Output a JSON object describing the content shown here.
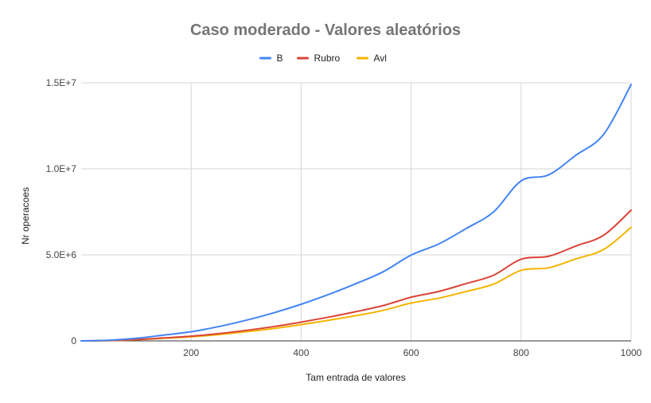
{
  "chart_data": {
    "type": "line",
    "title": "Caso moderado - Valores aleatórios",
    "xlabel": "Tam entrada de valores",
    "ylabel": "Nr operacoes",
    "xlim": [
      0,
      1000
    ],
    "ylim": [
      0,
      15000000
    ],
    "x_ticks": [
      200,
      400,
      600,
      800,
      1000
    ],
    "y_ticks": [
      0,
      5000000,
      10000000,
      15000000
    ],
    "y_tick_labels": [
      "0",
      "5.0E+6",
      "1.0E+7",
      "1.5E+7"
    ],
    "grid": true,
    "legend_position": "top",
    "x": [
      0,
      50,
      100,
      150,
      200,
      250,
      300,
      350,
      400,
      450,
      500,
      550,
      600,
      650,
      700,
      750,
      800,
      850,
      900,
      950,
      1000
    ],
    "series": [
      {
        "name": "B",
        "color": "#4285f4",
        "values": [
          0,
          37000,
          150000,
          335000,
          530000,
          830000,
          1200000,
          1630000,
          2130000,
          2700000,
          3330000,
          4030000,
          4990000,
          5630000,
          6530000,
          7500000,
          9300000,
          9650000,
          10800000,
          12000000,
          14900000
        ]
      },
      {
        "name": "Rubro",
        "color": "#db4437",
        "values": [
          0,
          19000,
          76000,
          171000,
          270000,
          420000,
          610000,
          830000,
          1090000,
          1380000,
          1700000,
          2060000,
          2540000,
          2870000,
          3330000,
          3820000,
          4750000,
          4920000,
          5520000,
          6140000,
          7600000
        ]
      },
      {
        "name": "Avl",
        "color": "#f4b400",
        "values": [
          0,
          16500,
          66000,
          149000,
          235000,
          367000,
          530000,
          720000,
          945000,
          1200000,
          1470000,
          1780000,
          2200000,
          2480000,
          2870000,
          3300000,
          4100000,
          4250000,
          4770000,
          5310000,
          6600000
        ]
      }
    ]
  }
}
